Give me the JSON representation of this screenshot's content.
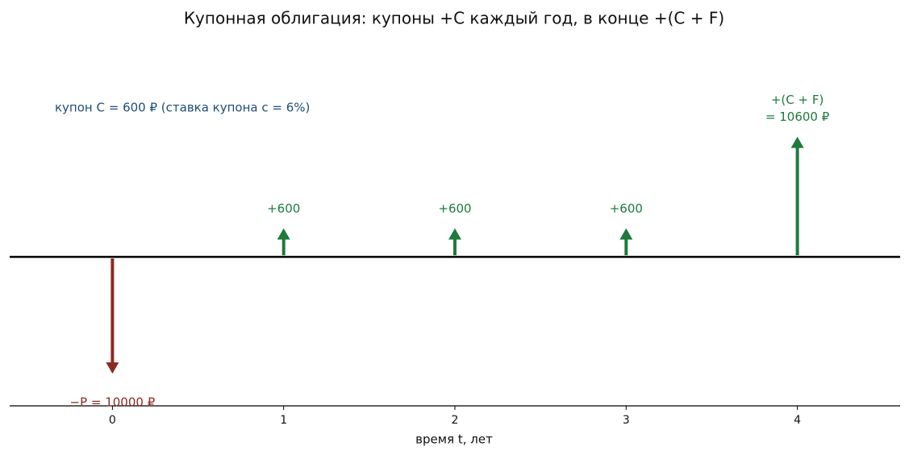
{
  "chart_data": {
    "type": "cashflow",
    "title": "Купонная облигация: купоны +C каждый год, в конце +(C + F)",
    "annotation": "купон C = 600 ₽ (ставка купона c = 6%)",
    "x_label": "время t, лет",
    "x": [
      0,
      1,
      2,
      3,
      4
    ],
    "values": [
      -10000,
      600,
      600,
      600,
      10600
    ],
    "value_labels": [
      "−P = 10000 ₽",
      "+600",
      "+600",
      "+600",
      [
        "+(C + F)",
        "= 10600 ₽"
      ]
    ],
    "xlim": [
      -0.6,
      4.6
    ],
    "xticks": [
      0,
      1,
      2,
      3,
      4
    ],
    "colors": {
      "inflow": "#1e7a3c",
      "outflow": "#8b2a22",
      "annotation": "#1f4e79"
    }
  }
}
